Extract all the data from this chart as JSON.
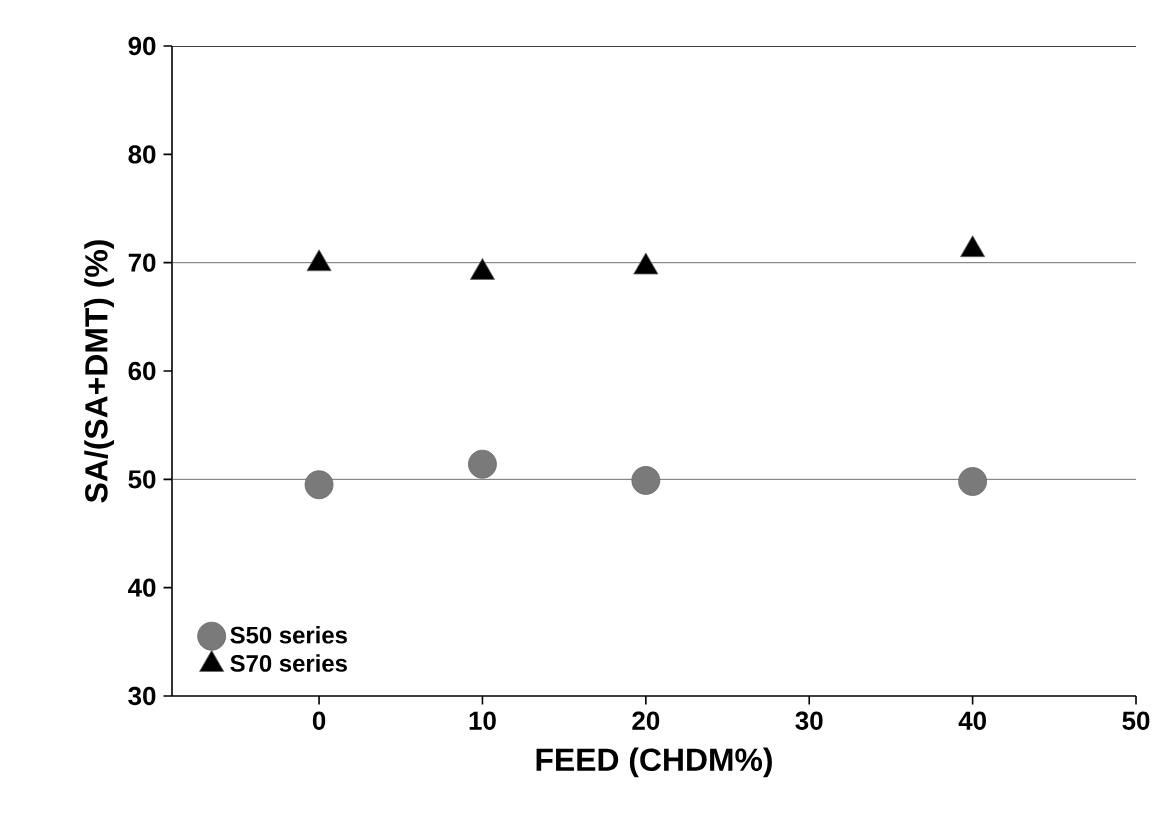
{
  "chart_data": {
    "type": "scatter",
    "xlabel": "FEED (CHDM%)",
    "ylabel": "SA/(SA+DMT) (%)",
    "x": [
      0,
      10,
      20,
      40
    ],
    "series": [
      {
        "name": "S50 series",
        "color": "#7a7a7a",
        "marker": "circle",
        "values": [
          49.5,
          51.4,
          49.9,
          49.8
        ]
      },
      {
        "name": "S70 series",
        "color": "#000000",
        "marker": "triangle",
        "values": [
          69.9,
          69.1,
          69.6,
          71.2
        ]
      }
    ],
    "xlim": [
      -9,
      50
    ],
    "ylim": [
      30,
      90
    ],
    "xticks": [
      0,
      10,
      20,
      30,
      40,
      50
    ],
    "yticks": [
      30,
      40,
      50,
      60,
      70,
      80,
      90
    ],
    "ref_lines": [
      {
        "axis": "y",
        "value": 50
      },
      {
        "axis": "y",
        "value": 70
      }
    ],
    "legend": "bottom left",
    "grid": false
  }
}
